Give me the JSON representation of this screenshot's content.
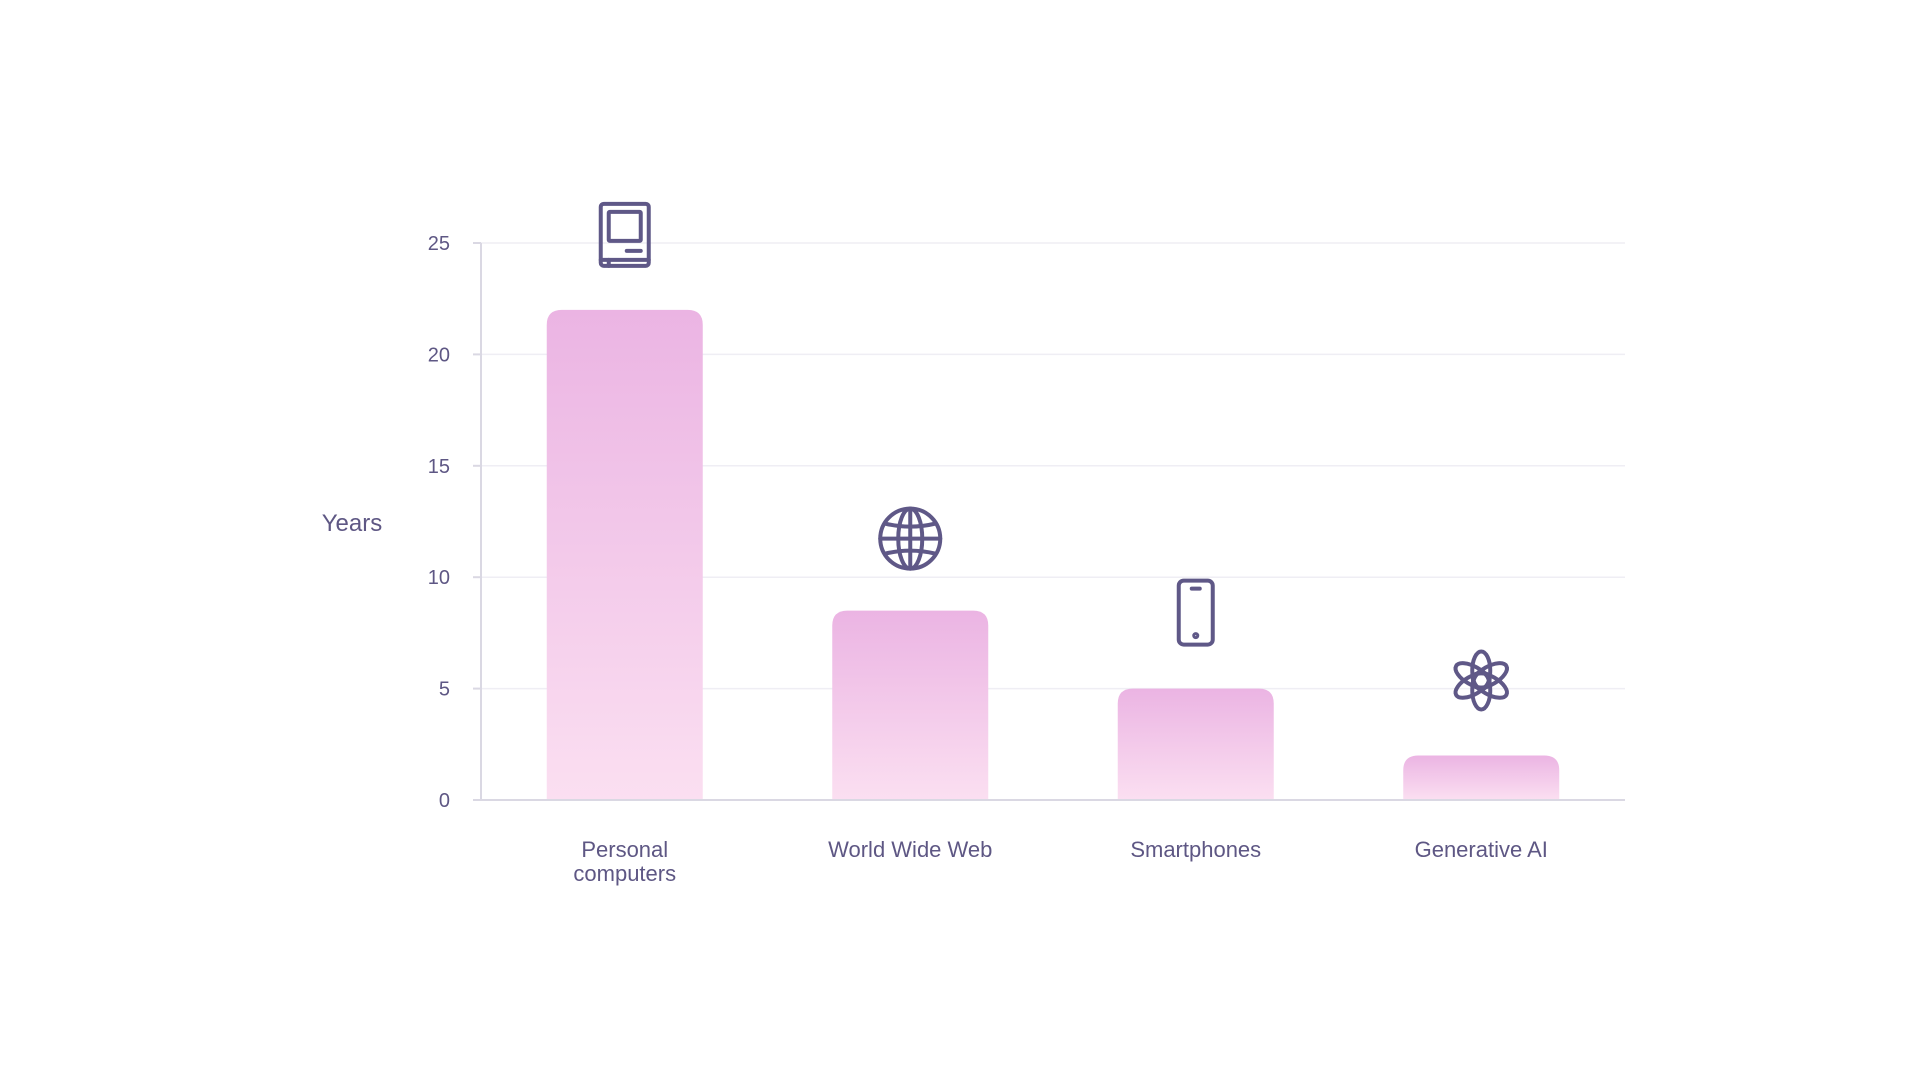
{
  "chart_data": {
    "type": "bar",
    "categories": [
      "Personal computers",
      "World Wide Web",
      "Smartphones",
      "Generative AI"
    ],
    "category_lines": [
      [
        "Personal",
        "computers"
      ],
      [
        "World Wide Web"
      ],
      [
        "Smartphones"
      ],
      [
        "Generative AI"
      ]
    ],
    "values": [
      22,
      8.5,
      5,
      2
    ],
    "icons": [
      "computer-icon",
      "globe-icon",
      "smartphone-icon",
      "openai-logo-icon"
    ],
    "ylabel": "Years",
    "ylim": [
      0,
      25
    ],
    "yticks": [
      0,
      5,
      10,
      15,
      20,
      25
    ],
    "grid": true,
    "colors": {
      "bar_top": "#ebb4e3",
      "bar_bottom": "#fbdff1",
      "text": "#5e5784",
      "icon": "#5f5887",
      "grid": "#efeef4",
      "axis": "#dad8e3"
    }
  }
}
